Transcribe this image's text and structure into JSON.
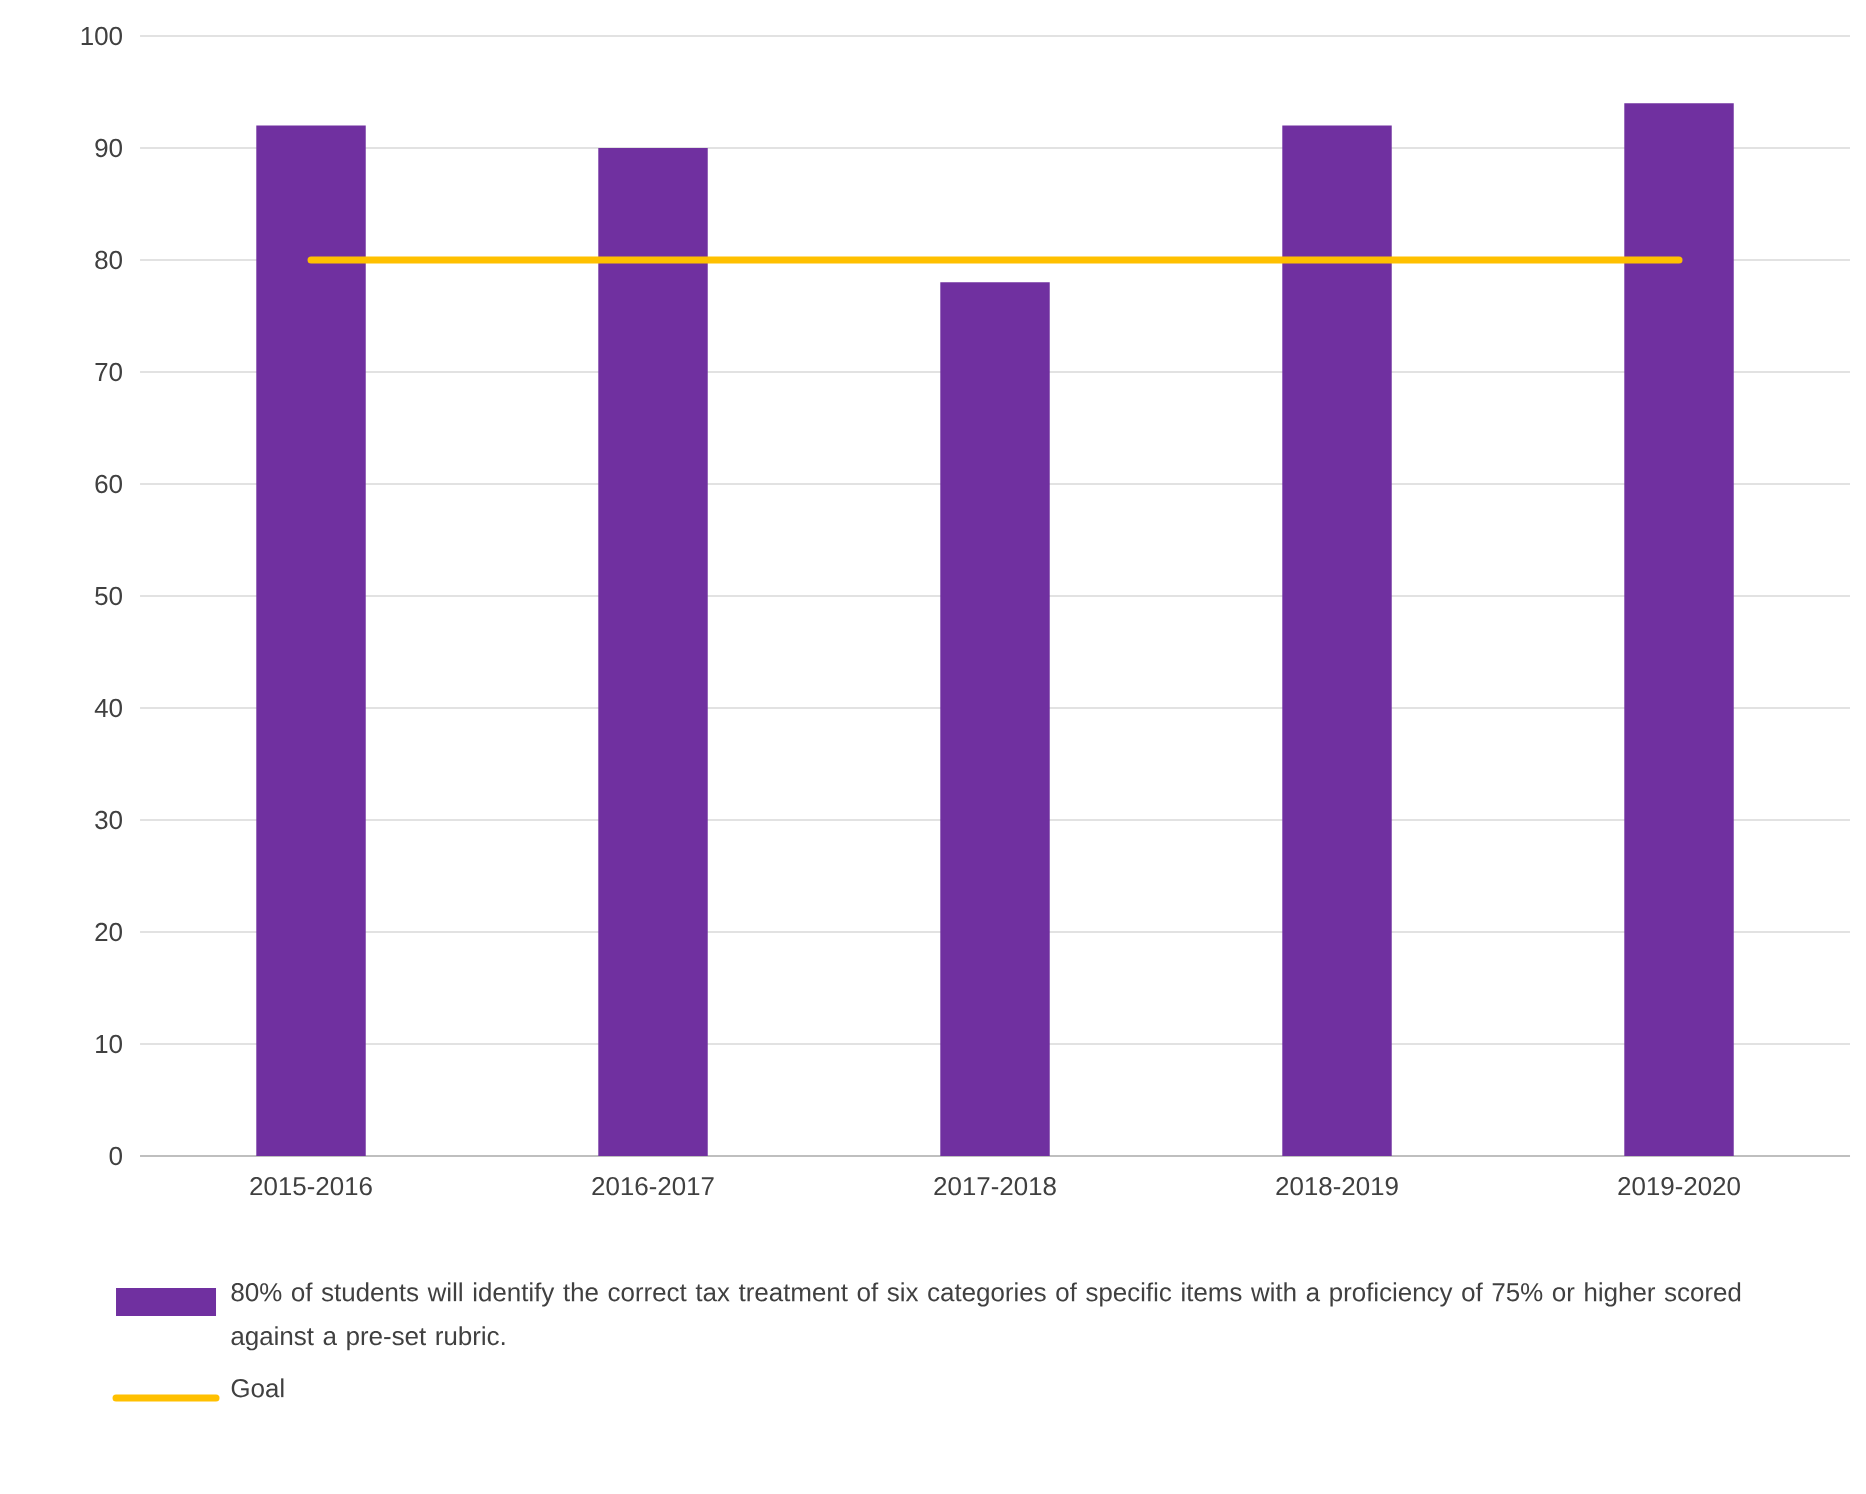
{
  "chart_data": {
    "type": "bar",
    "categories": [
      "2015-2016",
      "2016-2017",
      "2017-2018",
      "2018-2019",
      "2019-2020"
    ],
    "series": [
      {
        "name": "80% of students will identify the correct tax treatment of six categories of specific items with a proficiency of 75% or higher scored against a pre-set rubric.",
        "color": "#7030a0",
        "values": [
          92,
          90,
          78,
          92,
          94
        ]
      },
      {
        "name": "Goal",
        "type": "line",
        "color": "#ffc000",
        "values": [
          80,
          80,
          80,
          80,
          80
        ]
      }
    ],
    "ylim": [
      0,
      100
    ],
    "yticks": [
      0,
      10,
      20,
      30,
      40,
      50,
      60,
      70,
      80,
      90,
      100
    ],
    "grid": "y",
    "legend": "bottom"
  }
}
